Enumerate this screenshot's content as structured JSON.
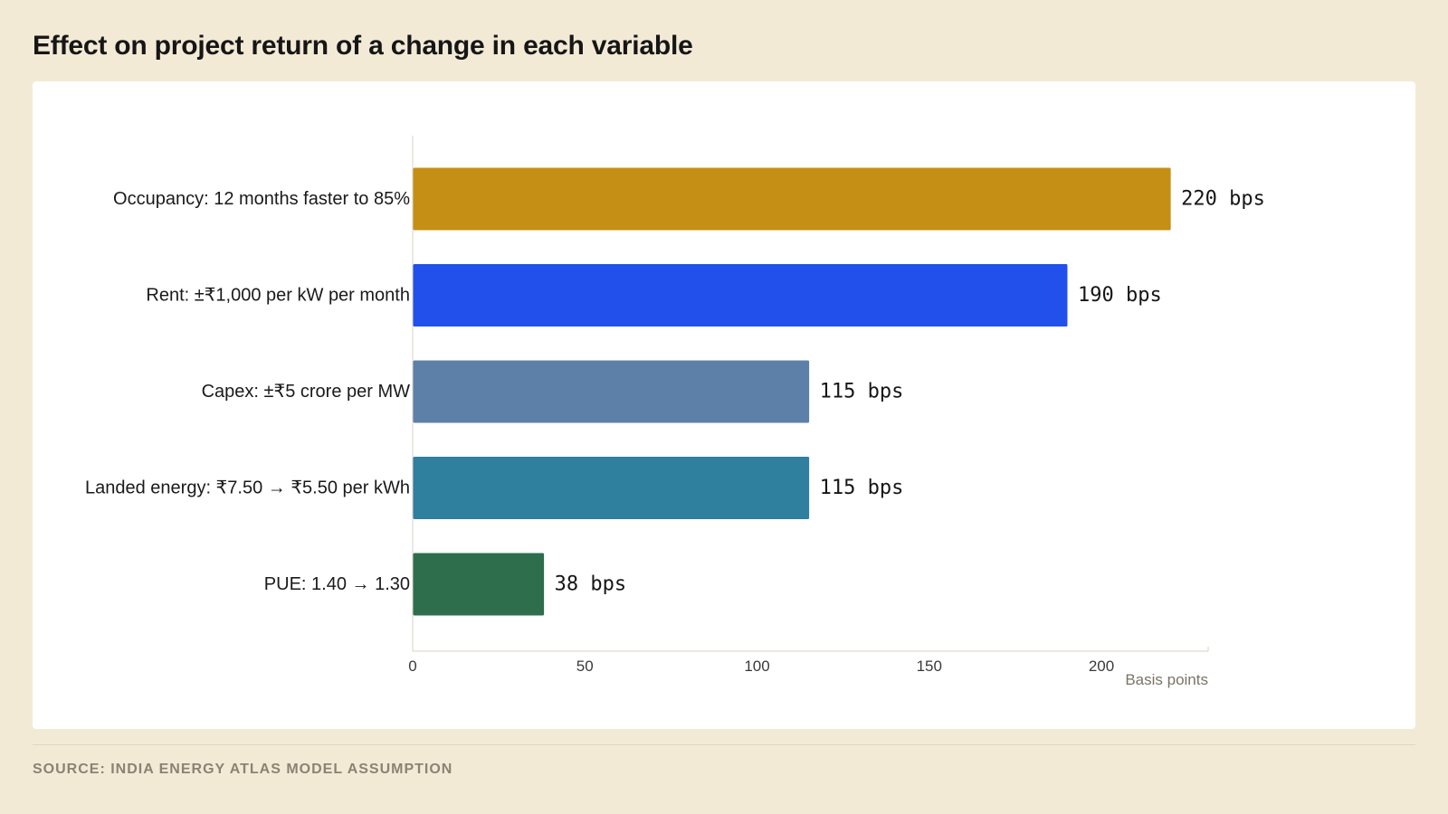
{
  "title": "Effect on project return of a change in each variable",
  "source": "SOURCE: INDIA ENERGY ATLAS MODEL ASSUMPTION",
  "chart_data": {
    "type": "bar",
    "orientation": "horizontal",
    "categories": [
      "Occupancy: 12 months faster to 85%",
      "Rent: ±₹1,000 per kW per month",
      "Capex: ±₹5 crore per MW",
      "Landed energy: ₹7.50 → ₹5.50 per kWh",
      "PUE: 1.40 → 1.30"
    ],
    "values": [
      220,
      190,
      115,
      115,
      38
    ],
    "value_labels": [
      "220 bps",
      "190 bps",
      "115 bps",
      "115 bps",
      "38 bps"
    ],
    "colors": [
      "#c58f15",
      "#2250ea",
      "#5c80a8",
      "#2f7f9f",
      "#2e6e4c"
    ],
    "xlabel": "Basis points",
    "ylabel": "",
    "xlim": [
      0,
      231
    ],
    "xticks": [
      0,
      50,
      100,
      150,
      200
    ],
    "grid": false
  }
}
